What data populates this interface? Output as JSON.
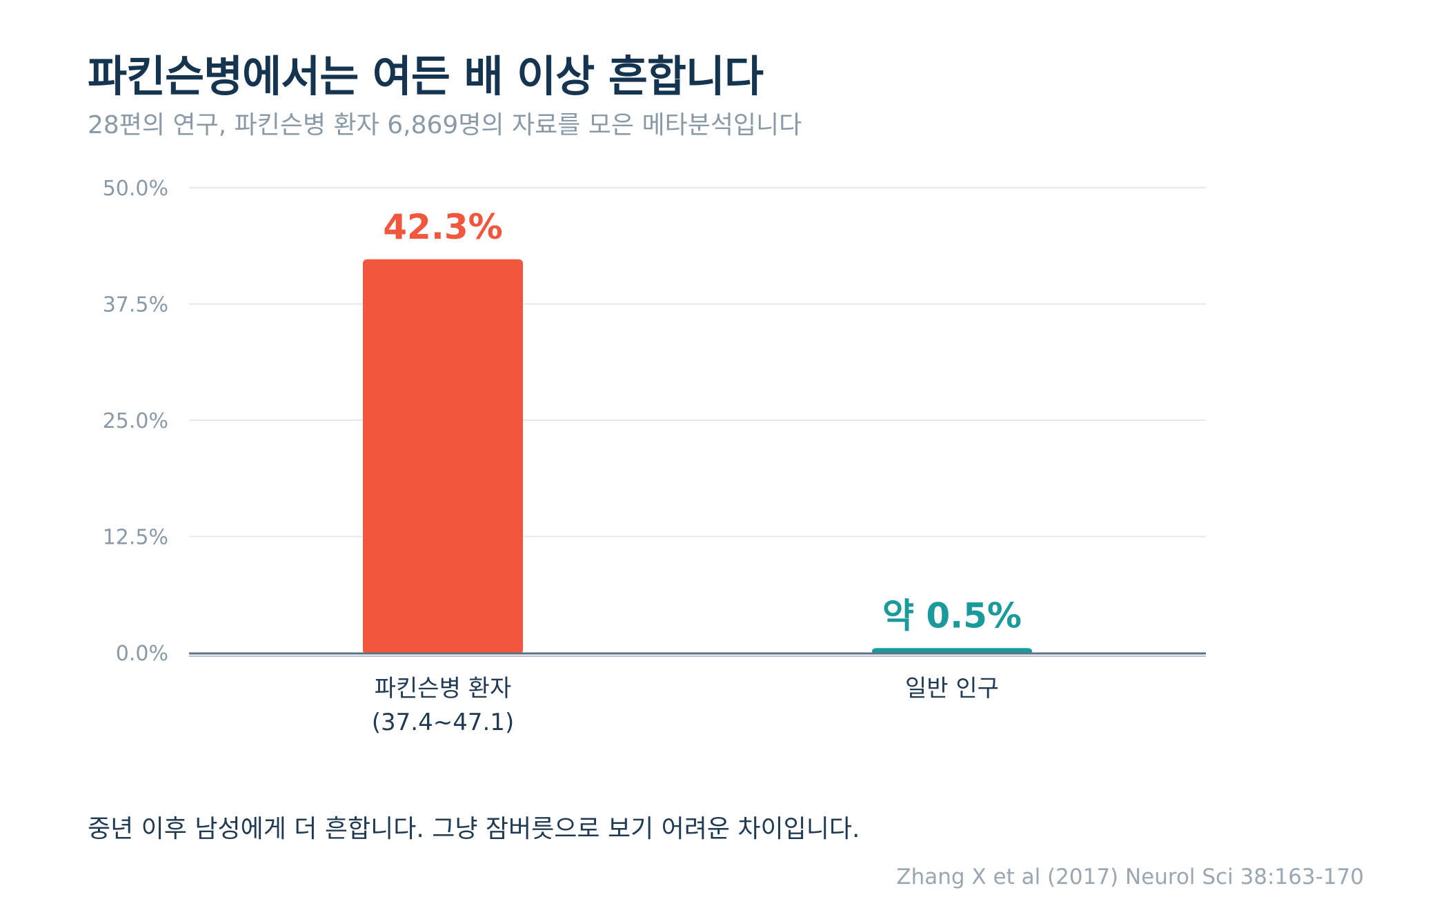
{
  "header": {
    "title": "파킨슨병에서는 여든 배 이상 흔합니다",
    "subtitle": "28편의 연구, 파킨슨병 환자 6,869명의 자료를 모은 메타분석입니다"
  },
  "chart_data": {
    "type": "bar",
    "categories": [
      "파킨슨병 환자",
      "일반 인구"
    ],
    "category_sublabels": [
      "(37.4~47.1)",
      ""
    ],
    "values": [
      42.3,
      0.5
    ],
    "value_labels": [
      "42.3%",
      "약 0.5%"
    ],
    "bar_colors": [
      "#f0573d",
      "#1a9a9a"
    ],
    "ylim": [
      0,
      50
    ],
    "yticks": [
      0,
      12.5,
      25,
      37.5,
      50
    ],
    "ytick_labels": [
      "0.0%",
      "12.5%",
      "25.0%",
      "37.5%",
      "50.0%"
    ],
    "grid": true,
    "legend": "none"
  },
  "footer": {
    "note": "중년 이후 남성에게 더 흔합니다. 그냥 잠버릇으로 보기 어려운 차이입니다.",
    "source": "Zhang X et al (2017) Neurol Sci 38:163-170"
  },
  "colors": {
    "title": "#14344f",
    "subtitle": "#8a99a6",
    "grid": "#e6e9ec",
    "baseline": "#5b7187",
    "tick_label": "#8a99a6",
    "category_label": "#1f3a52"
  }
}
